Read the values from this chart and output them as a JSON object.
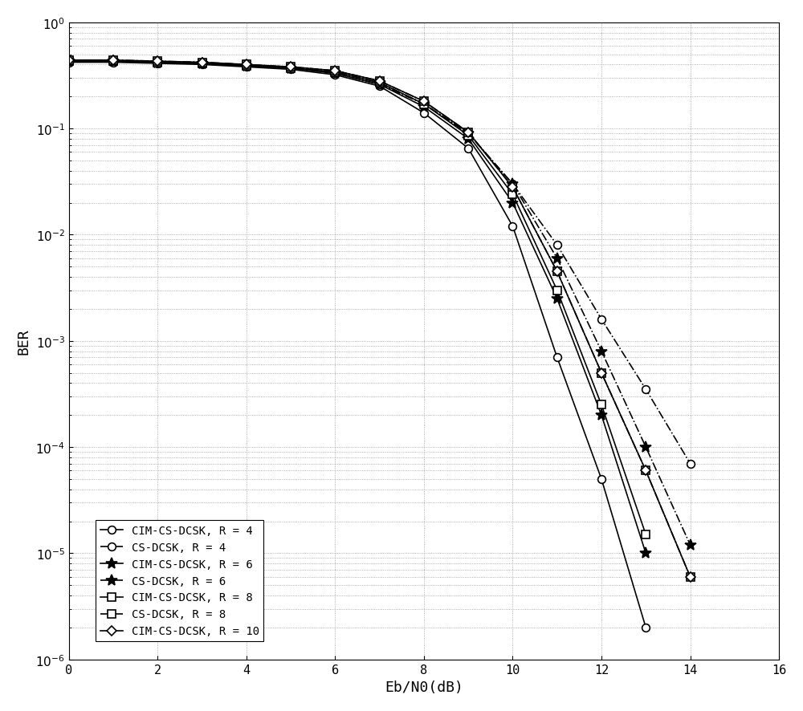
{
  "title": "",
  "xlabel": "Eb/N0(dB)",
  "ylabel": "BER",
  "xlim": [
    0,
    16
  ],
  "x_ticks": [
    0,
    2,
    4,
    6,
    8,
    10,
    12,
    14,
    16
  ],
  "background_color": "#ffffff",
  "grid_color": "#aaaaaa",
  "series": [
    {
      "label": "CIM-CS-DCSK, R = 4",
      "linestyle": "solid",
      "marker": "o",
      "color": "#000000",
      "markersize": 7,
      "linewidth": 1.2,
      "markerfacecolor": "white",
      "x": [
        0,
        1,
        2,
        3,
        4,
        5,
        6,
        7,
        8,
        9,
        10,
        11,
        12,
        13,
        14,
        15,
        16
      ],
      "y": [
        0.42,
        0.42,
        0.41,
        0.4,
        0.38,
        0.36,
        0.32,
        0.25,
        0.14,
        0.065,
        0.012,
        0.0007,
        5e-05,
        2e-06,
        null,
        null,
        null
      ]
    },
    {
      "label": "CS-DCSK, R = 4",
      "linestyle": "dashdot",
      "marker": "o",
      "color": "#000000",
      "markersize": 7,
      "linewidth": 1.2,
      "markerfacecolor": "white",
      "x": [
        0,
        1,
        2,
        3,
        4,
        5,
        6,
        7,
        8,
        9,
        10,
        11,
        12,
        13,
        14,
        15,
        16
      ],
      "y": [
        0.43,
        0.43,
        0.42,
        0.41,
        0.39,
        0.37,
        0.33,
        0.26,
        0.17,
        0.09,
        0.03,
        0.008,
        0.0016,
        0.00035,
        7e-05,
        null,
        null
      ]
    },
    {
      "label": "CIM-CS-DCSK, R = 6",
      "linestyle": "solid",
      "marker": "*",
      "color": "#000000",
      "markersize": 10,
      "linewidth": 1.2,
      "markerfacecolor": "#000000",
      "x": [
        0,
        1,
        2,
        3,
        4,
        5,
        6,
        7,
        8,
        9,
        10,
        11,
        12,
        13,
        14,
        15,
        16
      ],
      "y": [
        0.43,
        0.43,
        0.42,
        0.41,
        0.39,
        0.37,
        0.33,
        0.26,
        0.16,
        0.08,
        0.02,
        0.0025,
        0.0002,
        1e-05,
        null,
        null,
        null
      ]
    },
    {
      "label": "CS-DCSK, R = 6",
      "linestyle": "dashdot",
      "marker": "*",
      "color": "#000000",
      "markersize": 10,
      "linewidth": 1.2,
      "markerfacecolor": "#000000",
      "x": [
        0,
        1,
        2,
        3,
        4,
        5,
        6,
        7,
        8,
        9,
        10,
        11,
        12,
        13,
        14,
        15,
        16
      ],
      "y": [
        0.43,
        0.43,
        0.42,
        0.41,
        0.39,
        0.37,
        0.34,
        0.27,
        0.17,
        0.09,
        0.03,
        0.006,
        0.0008,
        0.0001,
        1.2e-05,
        null,
        null
      ]
    },
    {
      "label": "CIM-CS-DCSK, R = 8",
      "linestyle": "solid",
      "marker": "s",
      "color": "#000000",
      "markersize": 7,
      "linewidth": 1.2,
      "markerfacecolor": "white",
      "x": [
        0,
        1,
        2,
        3,
        4,
        5,
        6,
        7,
        8,
        9,
        10,
        11,
        12,
        13,
        14,
        15,
        16
      ],
      "y": [
        0.43,
        0.43,
        0.42,
        0.41,
        0.39,
        0.37,
        0.34,
        0.27,
        0.17,
        0.086,
        0.024,
        0.003,
        0.00025,
        1.5e-05,
        null,
        null,
        null
      ]
    },
    {
      "label": "CS-DCSK, R = 8",
      "linestyle": "dashdot",
      "marker": "s",
      "color": "#000000",
      "markersize": 7,
      "linewidth": 1.2,
      "markerfacecolor": "white",
      "x": [
        0,
        1,
        2,
        3,
        4,
        5,
        6,
        7,
        8,
        9,
        10,
        11,
        12,
        13,
        14,
        15,
        16
      ],
      "y": [
        0.44,
        0.44,
        0.43,
        0.42,
        0.4,
        0.38,
        0.35,
        0.28,
        0.18,
        0.092,
        0.028,
        0.0045,
        0.0005,
        6e-05,
        6e-06,
        null,
        null
      ]
    },
    {
      "label": "CIM-CS-DCSK, R = 10",
      "linestyle": "solid",
      "marker": "D",
      "color": "#000000",
      "markersize": 6,
      "linewidth": 1.2,
      "markerfacecolor": "white",
      "x": [
        0,
        1,
        2,
        3,
        4,
        5,
        6,
        7,
        8,
        9,
        10,
        11,
        12,
        13,
        14,
        15,
        16
      ],
      "y": [
        0.44,
        0.44,
        0.43,
        0.42,
        0.4,
        0.38,
        0.35,
        0.28,
        0.18,
        0.092,
        0.028,
        0.0045,
        0.0005,
        6e-05,
        6e-06,
        null,
        null
      ]
    }
  ]
}
